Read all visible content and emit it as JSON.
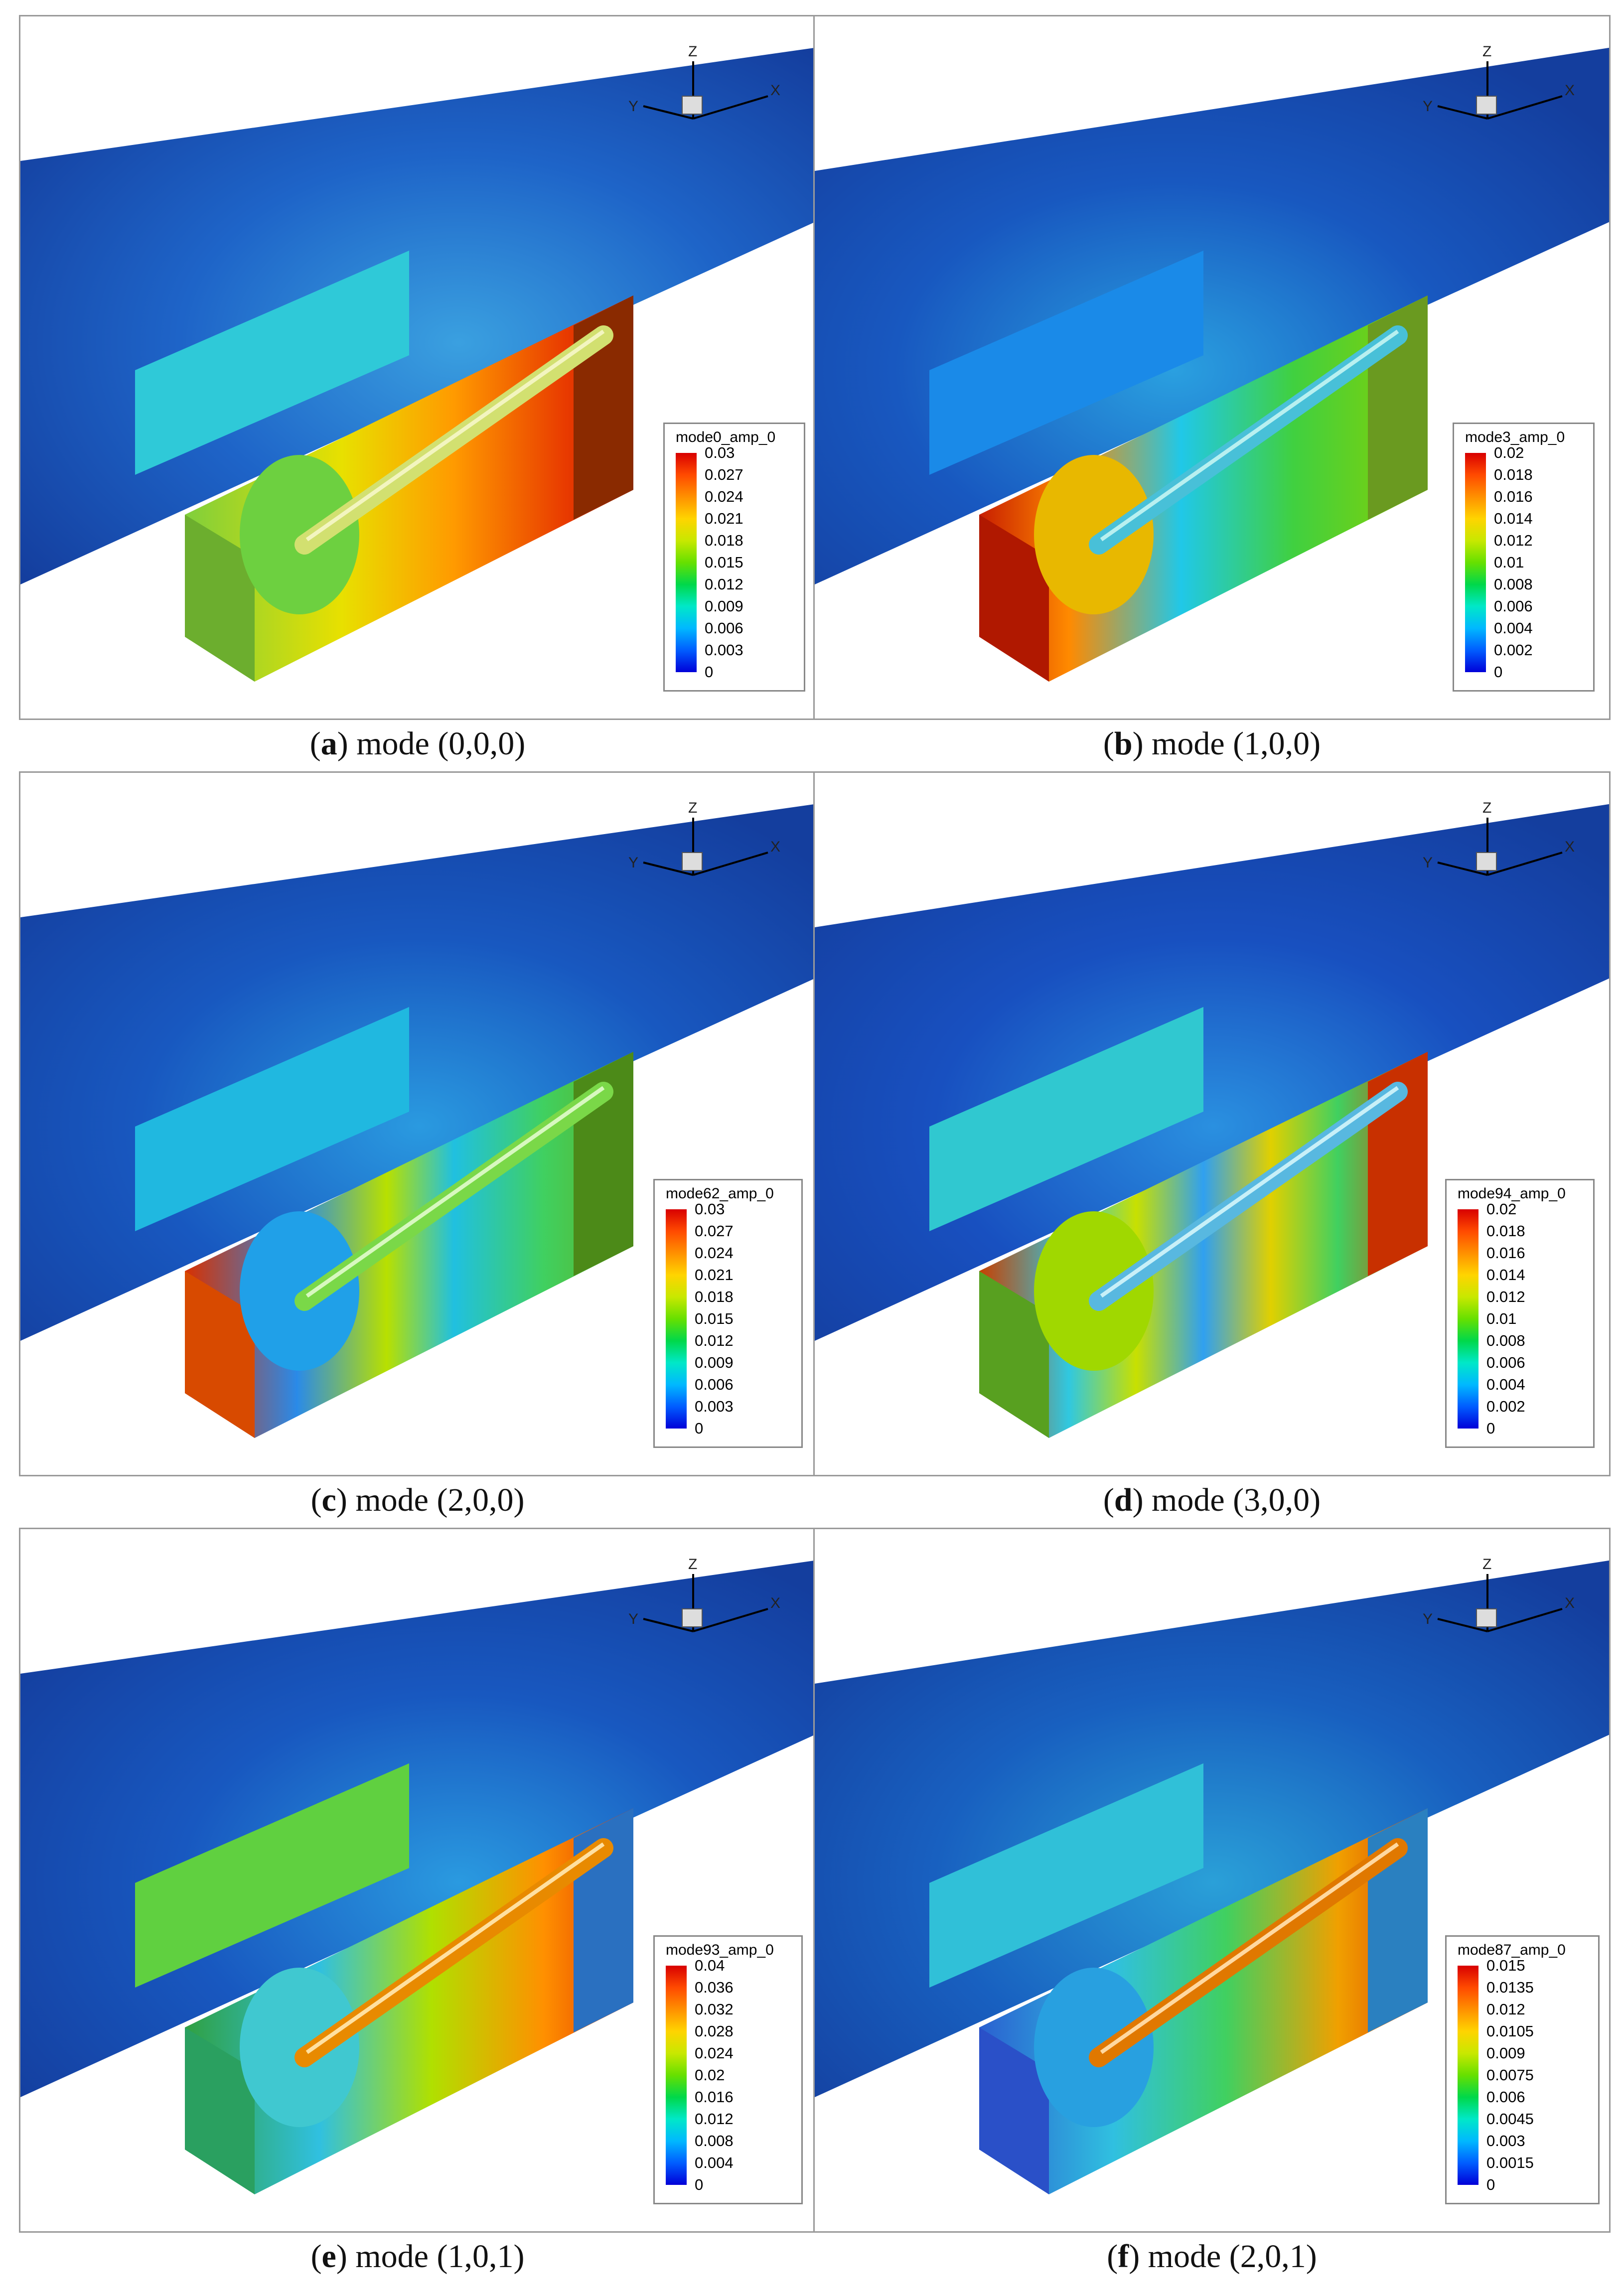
{
  "colors": {
    "background_flow": "#12389c",
    "mid_flow": "#1d6fd3",
    "colormap": [
      "#0000d8",
      "#005dff",
      "#00b8ff",
      "#00e8c8",
      "#00d84a",
      "#66e000",
      "#c8e800",
      "#ffd400",
      "#ff9000",
      "#ff4a00",
      "#d80000"
    ]
  },
  "panels": [
    {
      "id": "a",
      "letter": "a",
      "caption": " mode (0,0,0)",
      "legend_title": "mode0_amp_0",
      "ticks": [
        "0.03",
        "0.027",
        "0.024",
        "0.021",
        "0.018",
        "0.015",
        "0.012",
        "0.009",
        "0.006",
        "0.003",
        "0"
      ],
      "axis_labels": {
        "z": "Z",
        "y": "Y",
        "x": "X"
      }
    },
    {
      "id": "b",
      "letter": "b",
      "caption": " mode (1,0,0)",
      "legend_title": "mode3_amp_0",
      "ticks": [
        "0.02",
        "0.018",
        "0.016",
        "0.014",
        "0.012",
        "0.01",
        "0.008",
        "0.006",
        "0.004",
        "0.002",
        "0"
      ],
      "axis_labels": {
        "z": "Z",
        "y": "Y",
        "x": "X"
      }
    },
    {
      "id": "c",
      "letter": "c",
      "caption": " mode (2,0,0)",
      "legend_title": "mode62_amp_0",
      "ticks": [
        "0.03",
        "0.027",
        "0.024",
        "0.021",
        "0.018",
        "0.015",
        "0.012",
        "0.009",
        "0.006",
        "0.003",
        "0"
      ],
      "axis_labels": {
        "z": "Z",
        "y": "Y",
        "x": "X"
      }
    },
    {
      "id": "d",
      "letter": "d",
      "caption": " mode (3,0,0)",
      "legend_title": "mode94_amp_0",
      "ticks": [
        "0.02",
        "0.018",
        "0.016",
        "0.014",
        "0.012",
        "0.01",
        "0.008",
        "0.006",
        "0.004",
        "0.002",
        "0"
      ],
      "axis_labels": {
        "z": "Z",
        "y": "Y",
        "x": "X"
      }
    },
    {
      "id": "e",
      "letter": "e",
      "caption": " mode (1,0,1)",
      "legend_title": "mode93_amp_0",
      "ticks": [
        "0.04",
        "0.036",
        "0.032",
        "0.028",
        "0.024",
        "0.02",
        "0.016",
        "0.012",
        "0.008",
        "0.004",
        "0"
      ],
      "axis_labels": {
        "z": "Z",
        "y": "Y",
        "x": "X"
      }
    },
    {
      "id": "f",
      "letter": "f",
      "caption": " mode (2,0,1)",
      "legend_title": "mode87_amp_0",
      "ticks": [
        "0.015",
        "0.0135",
        "0.012",
        "0.0105",
        "0.009",
        "0.0075",
        "0.006",
        "0.0045",
        "0.003",
        "0.0015",
        "0"
      ],
      "axis_labels": {
        "z": "Z",
        "y": "Y",
        "x": "X"
      }
    }
  ]
}
